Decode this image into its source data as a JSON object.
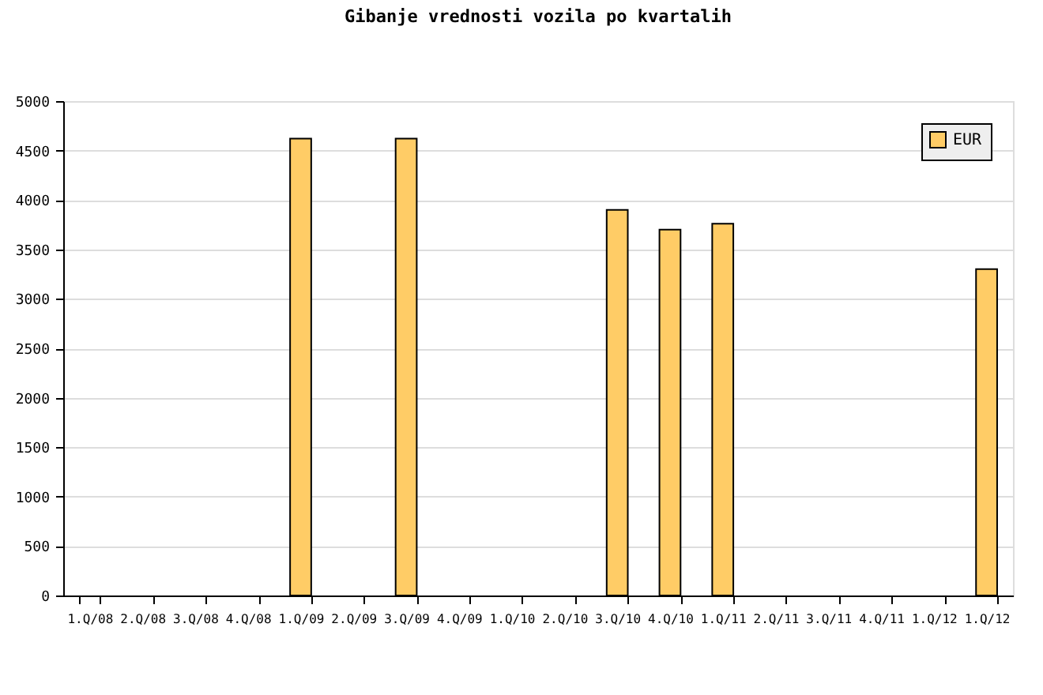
{
  "chart_data": {
    "type": "bar",
    "title": "Gibanje vrednosti vozila po kvartalih",
    "categories": [
      "1.Q/08",
      "2.Q/08",
      "3.Q/08",
      "4.Q/08",
      "1.Q/09",
      "2.Q/09",
      "3.Q/09",
      "4.Q/09",
      "1.Q/10",
      "2.Q/10",
      "3.Q/10",
      "4.Q/10",
      "1.Q/11",
      "2.Q/11",
      "3.Q/11",
      "4.Q/11",
      "1.Q/12",
      "1.Q/12"
    ],
    "series": [
      {
        "name": "EUR",
        "color": "#ffcc66",
        "values": [
          null,
          null,
          null,
          null,
          4620,
          null,
          4620,
          null,
          null,
          null,
          3900,
          3700,
          3760,
          null,
          null,
          null,
          null,
          3300
        ]
      }
    ],
    "ylim": [
      0,
      5000
    ],
    "yticks": [
      0,
      500,
      1000,
      1500,
      2000,
      2500,
      3000,
      3500,
      4000,
      4500,
      5000
    ],
    "grid": "y",
    "legend": "top right"
  }
}
